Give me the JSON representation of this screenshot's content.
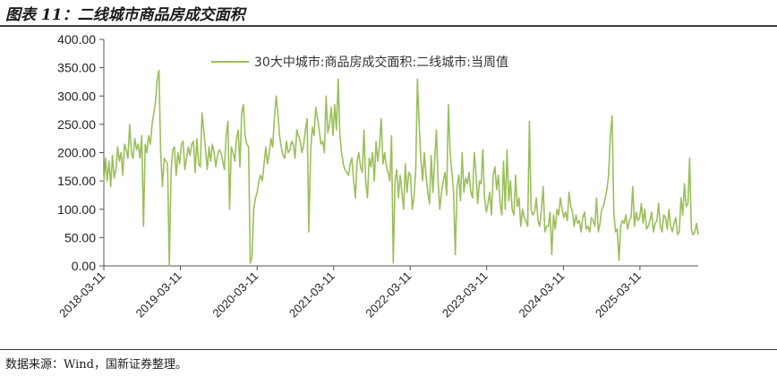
{
  "header": {
    "title": "图表 11：二线城市商品房成交面积"
  },
  "footer": {
    "source": "数据来源：Wind，国新证券整理。"
  },
  "chart_data": {
    "type": "line",
    "title": "图表 11：二线城市商品房成交面积",
    "xlabel": "",
    "ylabel": "",
    "ylim": [
      0,
      400
    ],
    "yticks": [
      "0.00",
      "50.00",
      "100.00",
      "150.00",
      "200.00",
      "250.00",
      "300.00",
      "350.00",
      "400.00"
    ],
    "xticks": [
      "2018-03-11",
      "2019-03-11",
      "2020-03-11",
      "2021-03-11",
      "2022-03-11",
      "2023-03-11",
      "2024-03-11",
      "2025-03-11"
    ],
    "x_start": "2018-03-11",
    "x_end": "2025-12-14",
    "legend_position": "top-right",
    "grid": false,
    "color": "#9bbf5a",
    "series": [
      {
        "name": "30大中城市:商品房成交面积:二线城市:当周值",
        "values": [
          145,
          190,
          150,
          185,
          140,
          195,
          155,
          170,
          210,
          185,
          200,
          160,
          215,
          205,
          190,
          250,
          200,
          190,
          225,
          205,
          215,
          190,
          230,
          70,
          215,
          200,
          230,
          215,
          250,
          270,
          290,
          330,
          345,
          200,
          140,
          190,
          185,
          180,
          0,
          165,
          205,
          210,
          160,
          200,
          180,
          215,
          220,
          170,
          190,
          210,
          195,
          215,
          220,
          165,
          225,
          180,
          175,
          270,
          240,
          205,
          170,
          210,
          185,
          215,
          200,
          175,
          195,
          205,
          200,
          185,
          170,
          230,
          255,
          100,
          210,
          200,
          185,
          225,
          240,
          175,
          270,
          285,
          230,
          215,
          210,
          5,
          15,
          100,
          120,
          130,
          150,
          160,
          150,
          180,
          210,
          180,
          200,
          225,
          210,
          260,
          300,
          270,
          230,
          210,
          195,
          190,
          220,
          200,
          205,
          220,
          215,
          190,
          240,
          230,
          220,
          200,
          215,
          240,
          260,
          60,
          200,
          245,
          230,
          280,
          260,
          240,
          215,
          220,
          200,
          300,
          235,
          250,
          280,
          230,
          285,
          240,
          330,
          230,
          200,
          180,
          170,
          165,
          160,
          180,
          190,
          150,
          120,
          185,
          200,
          175,
          165,
          240,
          150,
          120,
          190,
          175,
          200,
          150,
          220,
          185,
          210,
          260,
          180,
          200,
          175,
          165,
          150,
          230,
          5,
          150,
          170,
          120,
          160,
          130,
          100,
          180,
          130,
          165,
          160,
          100,
          120,
          170,
          330,
          250,
          190,
          150,
          200,
          160,
          130,
          110,
          195,
          130,
          185,
          240,
          150,
          100,
          130,
          150,
          165,
          125,
          285,
          200,
          165,
          130,
          20,
          140,
          160,
          115,
          200,
          130,
          155,
          145,
          165,
          130,
          120,
          200,
          165,
          110,
          150,
          145,
          205,
          120,
          95,
          110,
          130,
          90,
          160,
          175,
          135,
          160,
          110,
          90,
          185,
          100,
          205,
          115,
          150,
          100,
          90,
          160,
          105,
          120,
          70,
          100,
          85,
          80,
          70,
          255,
          100,
          90,
          95,
          120,
          80,
          70,
          100,
          140,
          60,
          70,
          70,
          95,
          20,
          90,
          65,
          100,
          90,
          120,
          100,
          85,
          95,
          80,
          130,
          105,
          95,
          70,
          90,
          75,
          80,
          60,
          85,
          95,
          65,
          70,
          60,
          85,
          80,
          70,
          120,
          60,
          75,
          100,
          105,
          120,
          135,
          160,
          230,
          265,
          95,
          60,
          65,
          10,
          70,
          80,
          75,
          90,
          65,
          80,
          85,
          140,
          70,
          95,
          80,
          85,
          110,
          75,
          100,
          65,
          70,
          80,
          95,
          60,
          75,
          80,
          110,
          70,
          60,
          90,
          85,
          65,
          100,
          70,
          60,
          75,
          85,
          55,
          60,
          120,
          90,
          145,
          105,
          110,
          190,
          65,
          55,
          60,
          75,
          55
        ]
      }
    ]
  }
}
